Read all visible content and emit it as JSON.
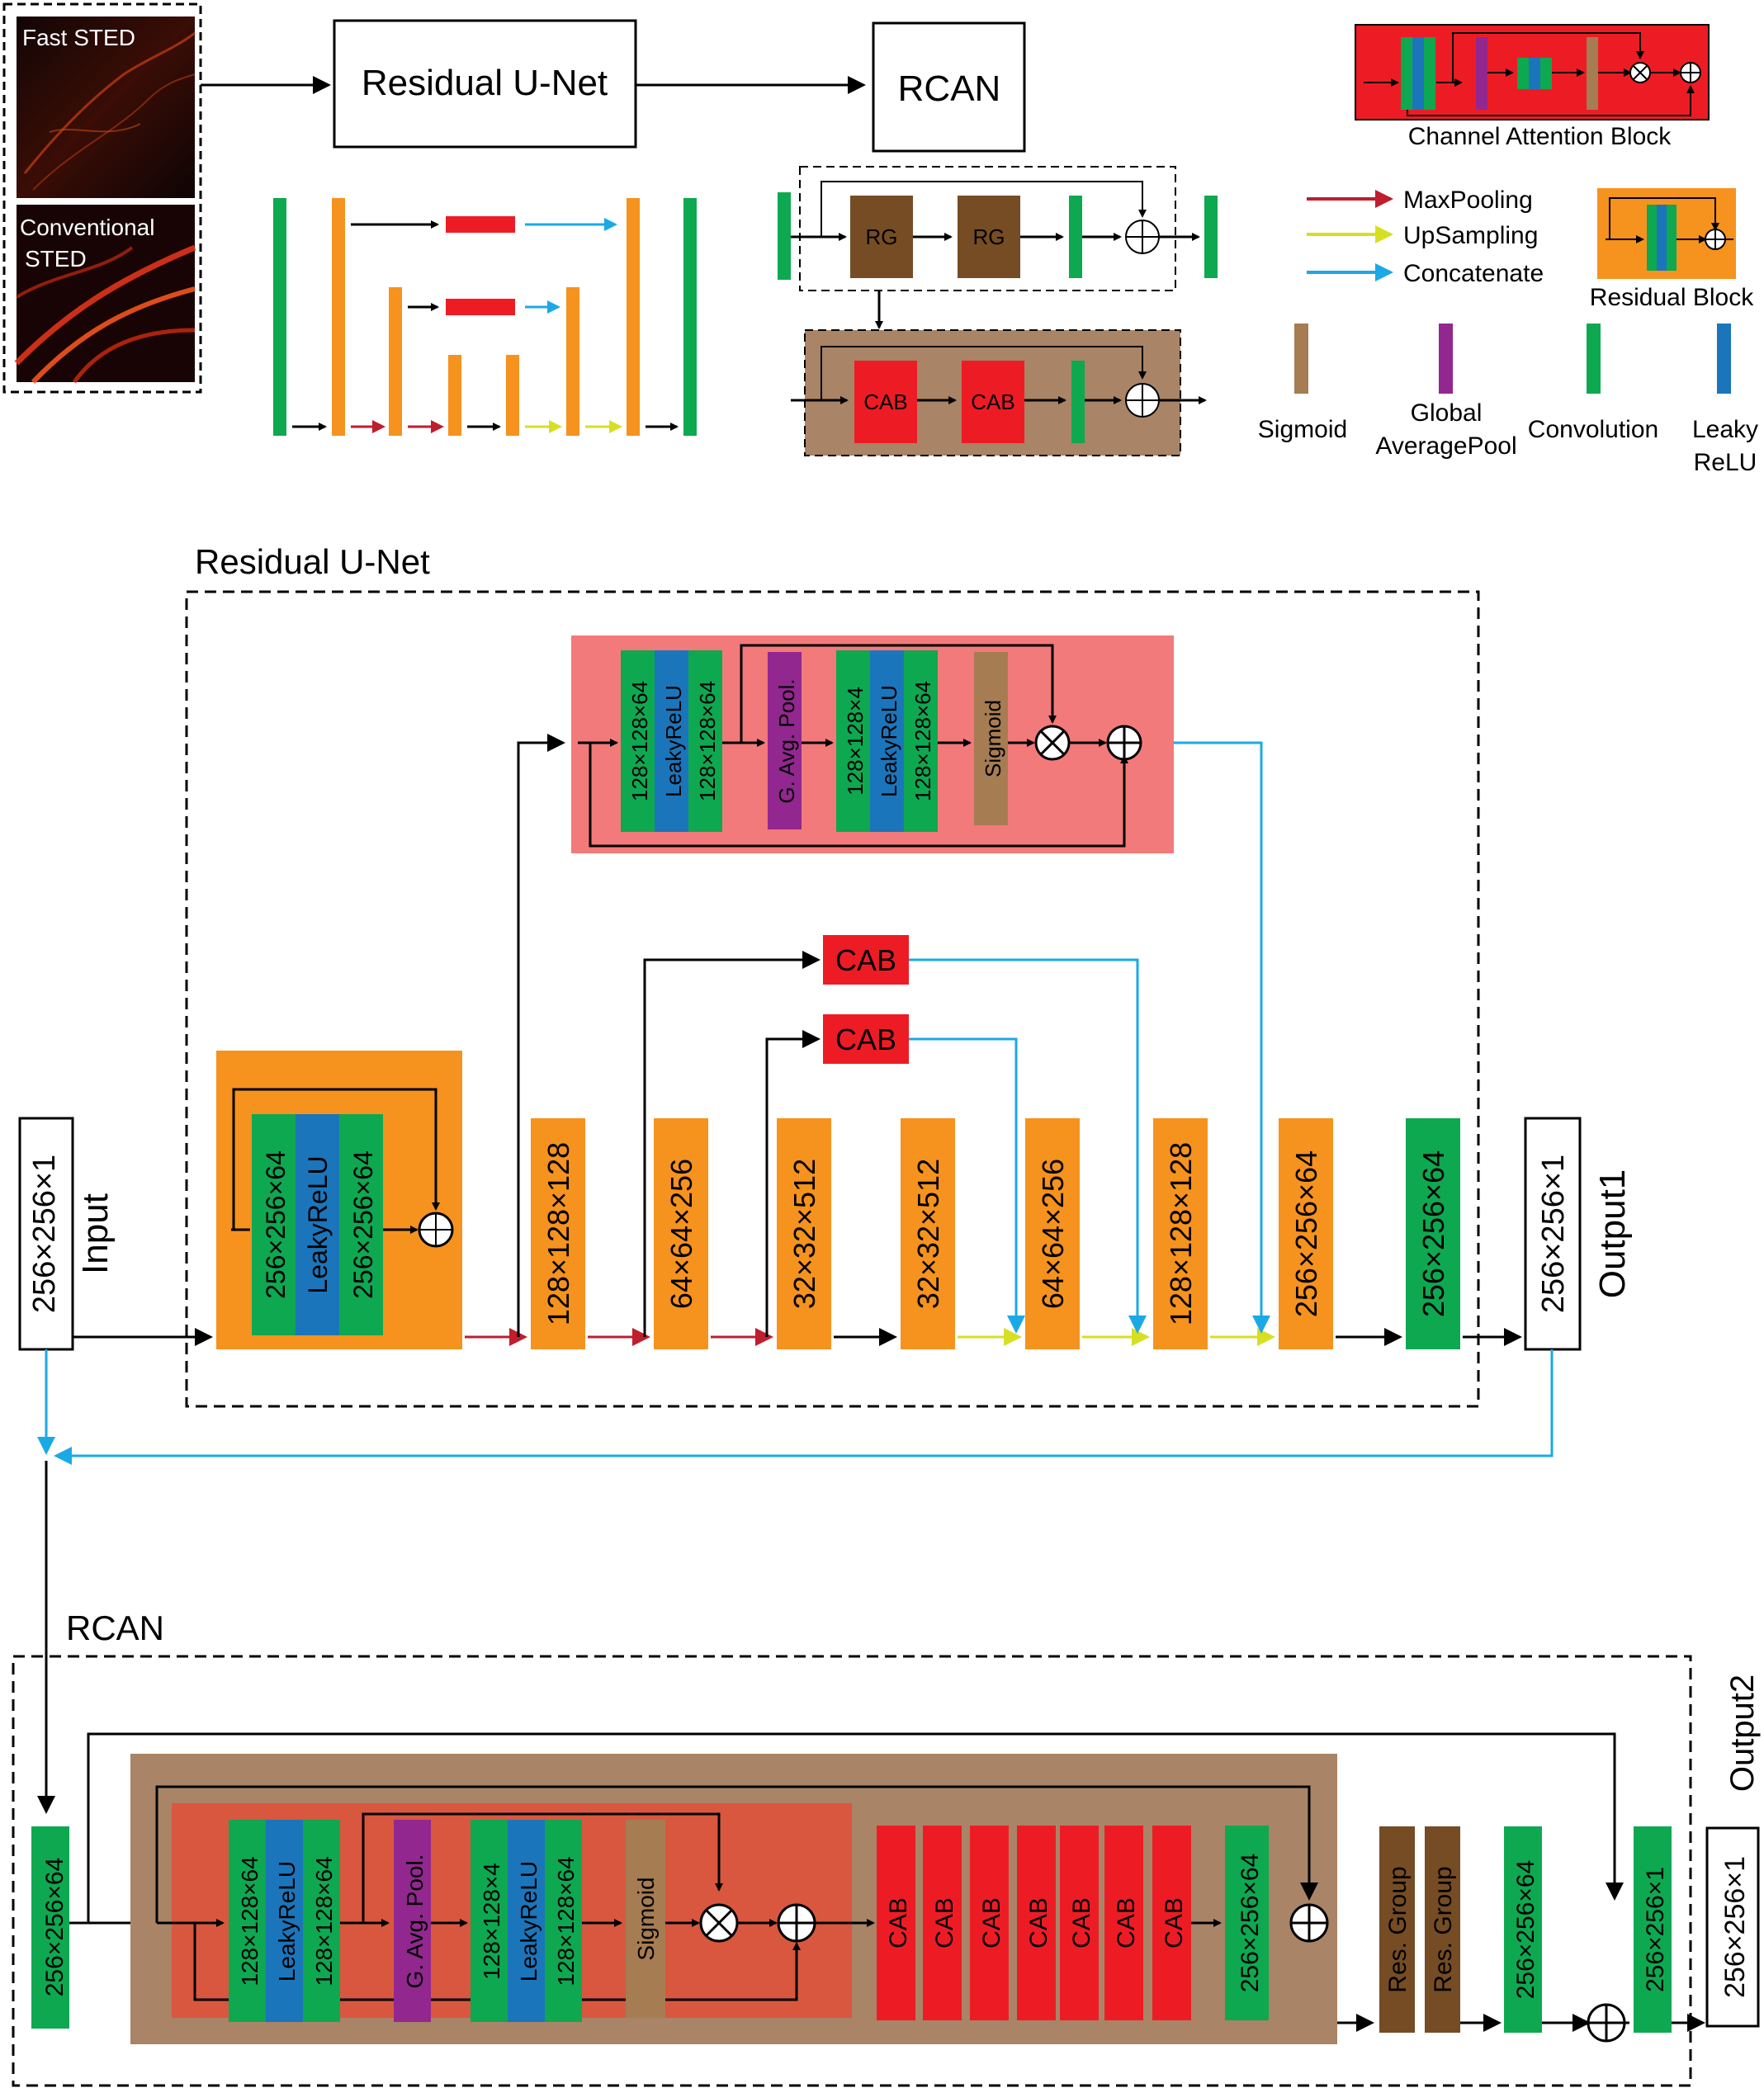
{
  "top": {
    "fast_sted": "Fast STED",
    "conventional_sted": "Conventional STED",
    "residual_unet": "Residual U-Net",
    "rcan": "RCAN",
    "rg": "RG",
    "cab": "CAB",
    "channel_attention_block": "Channel Attention Block",
    "residual_block": "Residual Block"
  },
  "legend": {
    "maxpooling": "MaxPooling",
    "upsampling": "UpSampling",
    "concatenate": "Concatenate",
    "sigmoid": "Sigmoid",
    "global_avgpool_1": "Global",
    "global_avgpool_2": "AveragePool",
    "convolution": "Convolution",
    "leaky_1": "Leaky",
    "leaky_2": "ReLU"
  },
  "unet": {
    "title": "Residual U-Net",
    "input_label": "Input",
    "input_dim": "256×256×1",
    "res_conv1": "256×256×64",
    "res_leaky": "LeakyReLU",
    "res_conv2": "256×256×64",
    "enc": [
      "128×128×128",
      "64×64×256",
      "32×32×512",
      "32×32×512"
    ],
    "dec": [
      "64×64×256",
      "128×128×128",
      "256×256×64"
    ],
    "final_conv": "256×256×64",
    "output_label": "Output1",
    "output_dim": "256×256×1",
    "ca_conv1": "128×128×64",
    "ca_leaky": "LeakyReLU",
    "ca_conv2": "128×128×64",
    "ca_gap": "G. Avg. Pool.",
    "ca_conv3": "128×128×4",
    "ca_leaky2": "LeakyReLU",
    "ca_conv4": "128×128×64",
    "ca_sigmoid": "Sigmoid",
    "cab": "CAB"
  },
  "rcan_detail": {
    "title": "RCAN",
    "in_conv": "256×256×64",
    "ca_conv1": "128×128×64",
    "ca_leaky": "LeakyReLU",
    "ca_conv2": "128×128×64",
    "ca_gap": "G. Avg. Pool.",
    "ca_conv3": "128×128×4",
    "ca_leaky2": "LeakyReLU",
    "ca_conv4": "128×128×64",
    "ca_sigmoid": "Sigmoid",
    "cab": "CAB",
    "rg_conv": "256×256×64",
    "res_group": "Res. Group",
    "tail_conv": "256×256×64",
    "out_conv": "256×256×1",
    "output_label": "Output2",
    "output_dim": "256×256×1"
  },
  "colors": {
    "green": "#0ea850",
    "orange": "#f6921e",
    "red": "#ed1c24",
    "blue": "#1b75bb",
    "purple": "#92278f",
    "sigmoid_brown": "#a67c52",
    "rg_brown": "#754c24",
    "rcan_bg": "#a98467",
    "pink": "#f37a7a",
    "ca_red": "#d9573f",
    "cyan": "#1ba9e6",
    "maxpool": "#be1e2d",
    "upsample": "#d7df23"
  }
}
